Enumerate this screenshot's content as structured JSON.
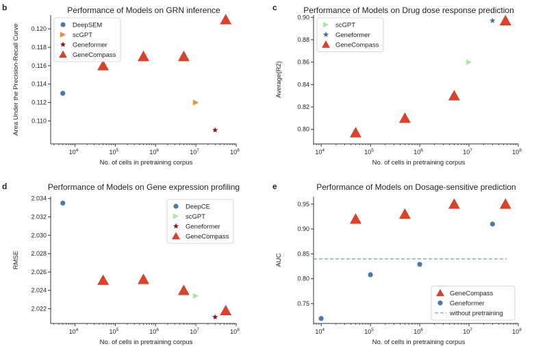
{
  "colors": {
    "genecompass": "#d9422b",
    "scgpt_orange": "#f28d35",
    "scgpt_green": "#a8e8a0",
    "geneformer_red": "#8b1a1a",
    "geneformer_blue": "#3e6fb0",
    "blue_point": "#4a78b0",
    "dashed": "#5bb4d6"
  },
  "chart_data": [
    {
      "letter": "b",
      "type": "scatter",
      "title": "Performance of Models on GRN inference",
      "xlabel": "No. of cells in pretraining corpus",
      "ylabel": "Area Under the Precision-Recall Curve",
      "xscale": "log",
      "xlim": [
        2500,
        100000000
      ],
      "ylim": [
        0.1075,
        0.1215
      ],
      "xticks": [
        {
          "v": 10000,
          "b": "10",
          "e": "4"
        },
        {
          "v": 100000,
          "b": "10",
          "e": "5"
        },
        {
          "v": 1000000,
          "b": "10",
          "e": "6"
        },
        {
          "v": 10000000,
          "b": "10",
          "e": "7"
        },
        {
          "v": 100000000,
          "b": "10",
          "e": "8"
        }
      ],
      "yticks": [
        {
          "v": 0.11,
          "t": "0.110"
        },
        {
          "v": 0.112,
          "t": "0.112"
        },
        {
          "v": 0.114,
          "t": "0.114"
        },
        {
          "v": 0.116,
          "t": "0.116"
        },
        {
          "v": 0.118,
          "t": "0.118"
        },
        {
          "v": 0.12,
          "t": "0.120"
        }
      ],
      "legend_pos": "top-left",
      "series": [
        {
          "name": "DeepSEM",
          "marker": "circle",
          "color": "#4a78b0",
          "points": [
            [
              5000,
              0.113
            ]
          ]
        },
        {
          "name": "scGPT",
          "marker": "tri-right",
          "color": "#f28d35",
          "points": [
            [
              10000000,
              0.112
            ]
          ]
        },
        {
          "name": "Geneformer",
          "marker": "star",
          "color": "#8b1a1a",
          "points": [
            [
              30000000,
              0.109
            ]
          ]
        },
        {
          "name": "GeneCompass",
          "marker": "triangle",
          "color": "#d9422b",
          "points": [
            [
              50000,
              0.116
            ],
            [
              500000,
              0.117
            ],
            [
              5000000,
              0.117
            ],
            [
              55000000,
              0.121
            ]
          ]
        }
      ]
    },
    {
      "letter": "c",
      "type": "scatter",
      "title": "Performance of Models on Drug dose response prediction",
      "xlabel": "No. of cells in pretraining corpus",
      "ylabel": "Average(R2)",
      "xscale": "log",
      "xlim": [
        7000,
        100000000
      ],
      "ylim": [
        0.787,
        0.902
      ],
      "xticks": [
        {
          "v": 10000,
          "b": "10",
          "e": "4"
        },
        {
          "v": 100000,
          "b": "10",
          "e": "5"
        },
        {
          "v": 1000000,
          "b": "10",
          "e": "6"
        },
        {
          "v": 10000000,
          "b": "10",
          "e": "7"
        },
        {
          "v": 100000000,
          "b": "10",
          "e": "8"
        }
      ],
      "yticks": [
        {
          "v": 0.8,
          "t": "0.80"
        },
        {
          "v": 0.82,
          "t": "0.82"
        },
        {
          "v": 0.84,
          "t": "0.84"
        },
        {
          "v": 0.86,
          "t": "0.86"
        },
        {
          "v": 0.88,
          "t": "0.88"
        },
        {
          "v": 0.9,
          "t": "0.90"
        }
      ],
      "legend_pos": "top-left",
      "series": [
        {
          "name": "scGPT",
          "marker": "tri-right",
          "color": "#a8e8a0",
          "points": [
            [
              10000000,
              0.86
            ]
          ]
        },
        {
          "name": "Geneformer",
          "marker": "star",
          "color": "#3e6fb0",
          "points": [
            [
              30000000,
              0.897
            ]
          ]
        },
        {
          "name": "GeneCompass",
          "marker": "triangle",
          "color": "#d9422b",
          "points": [
            [
              50000,
              0.797
            ],
            [
              500000,
              0.81
            ],
            [
              5000000,
              0.83
            ],
            [
              55000000,
              0.897
            ]
          ]
        }
      ]
    },
    {
      "letter": "d",
      "type": "scatter",
      "title": "Performance of Models on Gene expression profiling",
      "xlabel": "No. of cells in pretraining corpus",
      "ylabel": "RMSE",
      "xscale": "log",
      "xlim": [
        2500,
        100000000
      ],
      "ylim": [
        2.0204,
        2.0342
      ],
      "xticks": [
        {
          "v": 10000,
          "b": "10",
          "e": "4"
        },
        {
          "v": 100000,
          "b": "10",
          "e": "5"
        },
        {
          "v": 1000000,
          "b": "10",
          "e": "6"
        },
        {
          "v": 10000000,
          "b": "10",
          "e": "7"
        },
        {
          "v": 100000000,
          "b": "10",
          "e": "8"
        }
      ],
      "yticks": [
        {
          "v": 2.022,
          "t": "2.022"
        },
        {
          "v": 2.024,
          "t": "2.024"
        },
        {
          "v": 2.026,
          "t": "2.026"
        },
        {
          "v": 2.028,
          "t": "2.028"
        },
        {
          "v": 2.03,
          "t": "2.030"
        },
        {
          "v": 2.032,
          "t": "2.032"
        },
        {
          "v": 2.034,
          "t": "2.034"
        }
      ],
      "legend_pos": "top-right",
      "series": [
        {
          "name": "DeepCE",
          "marker": "circle",
          "color": "#4a78b0",
          "points": [
            [
              5000,
              2.0335
            ]
          ]
        },
        {
          "name": "scGPT",
          "marker": "tri-right",
          "color": "#a8e8a0",
          "points": [
            [
              10000000,
              2.0234
            ]
          ]
        },
        {
          "name": "Geneformer",
          "marker": "star",
          "color": "#8b1a1a",
          "points": [
            [
              30000000,
              2.0211
            ]
          ]
        },
        {
          "name": "GeneCompass",
          "marker": "triangle",
          "color": "#d9422b",
          "points": [
            [
              50000,
              2.0251
            ],
            [
              500000,
              2.0252
            ],
            [
              5000000,
              2.024
            ],
            [
              55000000,
              2.0218
            ]
          ]
        }
      ]
    },
    {
      "letter": "e",
      "type": "scatter",
      "title": "Performance of Models on Dosage-sensitive prediction",
      "xlabel": "No. of cells in pretraining corpus",
      "ylabel": "AUC",
      "xscale": "log",
      "xlim": [
        7000,
        100000000
      ],
      "ylim": [
        0.71,
        0.965
      ],
      "xticks": [
        {
          "v": 10000,
          "b": "10",
          "e": "4"
        },
        {
          "v": 100000,
          "b": "10",
          "e": "5"
        },
        {
          "v": 1000000,
          "b": "10",
          "e": "6"
        },
        {
          "v": 10000000,
          "b": "10",
          "e": "7"
        },
        {
          "v": 100000000,
          "b": "10",
          "e": "8"
        }
      ],
      "yticks": [
        {
          "v": 0.75,
          "t": "0.75"
        },
        {
          "v": 0.8,
          "t": "0.80"
        },
        {
          "v": 0.85,
          "t": "0.85"
        },
        {
          "v": 0.9,
          "t": "0.90"
        },
        {
          "v": 0.95,
          "t": "0.95"
        }
      ],
      "legend_pos": "bottom-right",
      "hline": {
        "name": "without pretraining",
        "y": 0.84,
        "color": "#5bb4d6"
      },
      "series": [
        {
          "name": "GeneCompass",
          "marker": "triangle",
          "color": "#d9422b",
          "points": [
            [
              50000,
              0.92
            ],
            [
              500000,
              0.93
            ],
            [
              5000000,
              0.95
            ],
            [
              55000000,
              0.95
            ]
          ]
        },
        {
          "name": "Geneformer",
          "marker": "circle",
          "color": "#4a78b0",
          "points": [
            [
              10000,
              0.72
            ],
            [
              100000,
              0.808
            ],
            [
              1000000,
              0.829
            ],
            [
              30000000,
              0.91
            ]
          ]
        }
      ]
    }
  ]
}
